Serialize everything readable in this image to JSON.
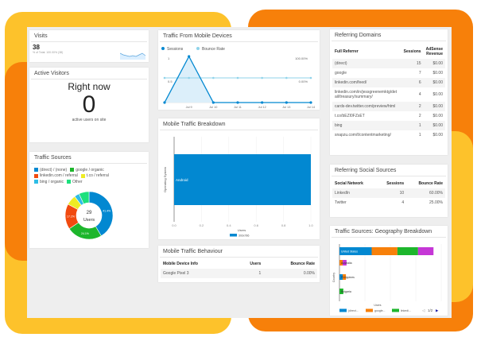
{
  "colors": {
    "yellow": "#fdc22b",
    "orange": "#f7800a",
    "blue": "#0288d1",
    "light_blue": "#8fd3ea",
    "green": "#1db62c",
    "red": "#f14a0f",
    "yellowgreen": "#eeec25",
    "cyan": "#2ebde6",
    "mint": "#1de07d",
    "purple": "#c537d6"
  },
  "visits": {
    "title": "Visits",
    "value": "38",
    "sub": "% of Total: 100.00% (38)"
  },
  "active": {
    "title": "Active Visitors",
    "heading": "Right now",
    "count": "0",
    "caption": "active users on site"
  },
  "traffic_sources": {
    "title": "Traffic Sources",
    "center_value": "29",
    "center_label": "Users"
  },
  "mobile_devices": {
    "title": "Traffic From Mobile Devices"
  },
  "mobile_breakdown": {
    "title": "Mobile Traffic Breakdown"
  },
  "behaviour": {
    "title": "Mobile Traffic Behaviour",
    "columns": [
      "Mobile Device Info",
      "Users",
      "Bounce Rate"
    ],
    "rows": [
      [
        "Google Pixel 3",
        "1",
        "0.00%"
      ]
    ]
  },
  "referring_domains": {
    "title": "Referring Domains",
    "columns": [
      "Full Referrer",
      "Sessions",
      "AdSense Revenue"
    ],
    "rows": [
      [
        "(direct)",
        "15",
        "$0.00"
      ],
      [
        "google",
        "7",
        "$0.00"
      ],
      [
        "linkedin.com/feed/",
        "6",
        "$0.00"
      ],
      [
        "linkedin.com/in/jessgreenemktg/detail/treasury/summary/",
        "4",
        "$0.00"
      ],
      [
        "cards-dev.twitter.com/preview/html",
        "2",
        "$0.00"
      ],
      [
        "t.co/bEZI0FZsET",
        "2",
        "$0.00"
      ],
      [
        "bing",
        "1",
        "$0.00"
      ],
      [
        "snapzu.com/t/contentmarketing/",
        "1",
        "$0.00"
      ]
    ]
  },
  "social": {
    "title": "Referring Social Sources",
    "columns": [
      "Social Network",
      "Sessions",
      "Bounce Rate"
    ],
    "rows": [
      [
        "LinkedIn",
        "10",
        "60.00%"
      ],
      [
        "Twitter",
        "4",
        "25.00%"
      ]
    ]
  },
  "geography": {
    "title": "Traffic Sources: Geography Breakdown",
    "pager": "1/2"
  },
  "chart_data": [
    {
      "id": "traffic_sources",
      "type": "pie",
      "legend_placement": "top",
      "slices": [
        {
          "name": "(direct) / (none)",
          "value": 41.4,
          "label": "41.4%",
          "color": "#0288d1"
        },
        {
          "name": "google / organic",
          "value": 24.1,
          "label": "24.1%",
          "color": "#1db62c"
        },
        {
          "name": "linkedin.com / referral",
          "value": 17.2,
          "label": "17.2%",
          "color": "#f14a0f"
        },
        {
          "name": "t.co / referral",
          "value": 6.9,
          "label": "",
          "color": "#eeec25"
        },
        {
          "name": "bing / organic",
          "value": 3.4,
          "label": "",
          "color": "#2ebde6"
        },
        {
          "name": "Other",
          "value": 6.9,
          "label": "",
          "color": "#1de07d"
        }
      ]
    },
    {
      "id": "mobile_devices",
      "type": "line",
      "legend_placement": "top-left",
      "categories": [
        "",
        "Jul 9",
        "Jul 10",
        "Jul 11",
        "Jul 12",
        "Jul 13",
        "Jul 14"
      ],
      "series": [
        {
          "name": "Sessions",
          "values": [
            0,
            1,
            0,
            0,
            0,
            0,
            0
          ],
          "color": "#0288d1"
        },
        {
          "name": "Bounce Rate",
          "values": [
            0,
            0,
            0,
            0,
            0,
            0,
            0
          ],
          "color": "#8fd3ea"
        }
      ],
      "left_ticks": [
        "1",
        "0.5"
      ],
      "right_ticks": [
        "100.00%",
        "0.00%"
      ],
      "ylim": [
        0,
        1
      ]
    },
    {
      "id": "mobile_breakdown",
      "type": "bar",
      "orientation": "horizontal",
      "categories": [
        "Android"
      ],
      "series": [
        {
          "name": "393x786",
          "values": [
            1
          ]
        }
      ],
      "xlabel": "Users",
      "ylabel": "Operating System",
      "xticks": [
        "0.0",
        "0.2",
        "0.4",
        "0.6",
        "0.8",
        "1.0"
      ],
      "xlim": [
        0,
        1
      ],
      "legend_placement": "bottom"
    },
    {
      "id": "geography",
      "type": "bar",
      "orientation": "horizontal",
      "stacked": true,
      "categories": [
        "United States",
        "Australia",
        "Philippines",
        "Bulgaria"
      ],
      "series": [
        {
          "name": "(direct...",
          "values": [
            5,
            0,
            0.5,
            0
          ],
          "color": "#0288d1"
        },
        {
          "name": "google...",
          "values": [
            4,
            0.5,
            0.5,
            0
          ],
          "color": "#f7800a"
        },
        {
          "name": "linkedi...",
          "values": [
            3.2,
            0,
            0,
            0.6
          ],
          "color": "#1db62c"
        },
        {
          "name": "",
          "values": [
            2.4,
            0.6,
            0,
            0
          ],
          "color": "#c537d6"
        }
      ],
      "xlabel": "Users",
      "ylabel": "Country",
      "legend_placement": "bottom"
    }
  ]
}
